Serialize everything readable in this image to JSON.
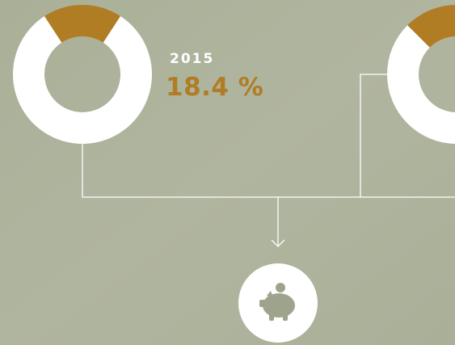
{
  "chart_data": [
    {
      "type": "donut",
      "categories": [
        "2015"
      ],
      "values": [
        18.4
      ],
      "value_labels": [
        "18.4 %"
      ],
      "color": "#b07d25"
    },
    {
      "type": "donut",
      "categories": [
        null
      ],
      "values": [
        25
      ],
      "color": "#b07d25"
    }
  ]
}
